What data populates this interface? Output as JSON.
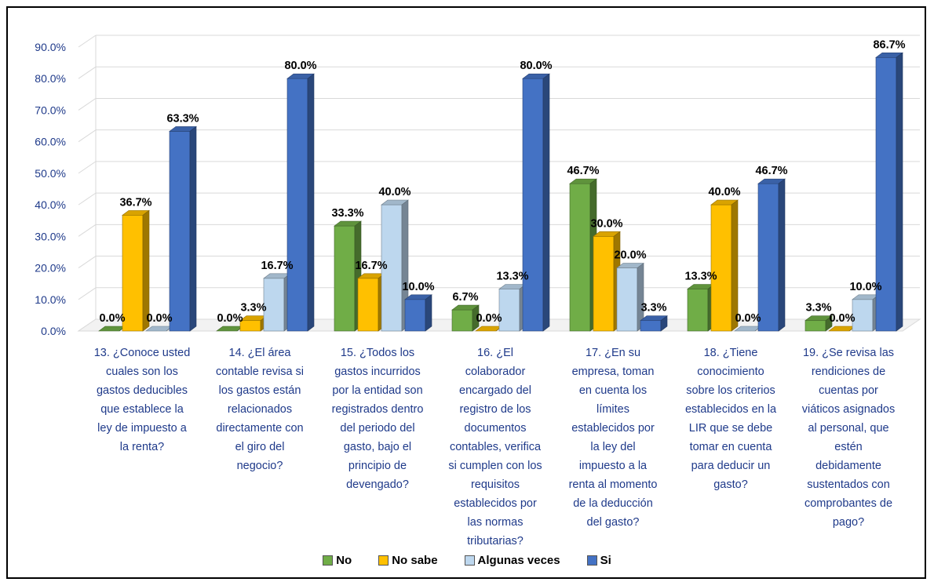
{
  "chart_data": {
    "type": "bar",
    "categories": [
      "13. ¿Conoce usted cuales son los gastos deducibles que establece la ley de impuesto a la renta?",
      "14. ¿El área contable revisa si los gastos están relacionados directamente con el giro del negocio?",
      "15. ¿Todos los gastos incurridos por la entidad son registrados dentro del periodo del gasto, bajo el principio de devengado?",
      "16. ¿El colaborador encargado del registro de los documentos contables, verifica si cumplen con los requisitos establecidos por las normas tributarias?",
      "17. ¿En su empresa, toman en cuenta los límites establecidos por la ley del impuesto a la renta al momento de la deducción del gasto?",
      "18. ¿Tiene conocimiento sobre los criterios establecidos en la LIR que se debe tomar en cuenta para deducir un gasto?",
      "19. ¿Se revisa las rendiciones de cuentas por viáticos asignados al personal, que estén debidamente sustentados con comprobantes de pago?"
    ],
    "category_lines": [
      [
        "13. ¿Conoce usted",
        "cuales son los",
        "gastos deducibles",
        "que establece la",
        "ley de impuesto a",
        "la renta?"
      ],
      [
        "14. ¿El área",
        "contable revisa si",
        "los gastos están",
        "relacionados",
        "directamente con",
        "el giro del",
        "negocio?"
      ],
      [
        "15. ¿Todos los",
        "gastos incurridos",
        "por la entidad son",
        "registrados dentro",
        "del periodo del",
        "gasto, bajo el",
        "principio de",
        "devengado?"
      ],
      [
        "16. ¿El",
        "colaborador",
        "encargado del",
        "registro de los",
        "documentos",
        "contables, verifica",
        "si cumplen con los",
        "requisitos",
        "establecidos por",
        "las normas",
        "tributarias?"
      ],
      [
        "17. ¿En su",
        "empresa, toman",
        "en cuenta los",
        "límites",
        "establecidos por",
        "la ley del",
        "impuesto a la",
        "renta al momento",
        "de la deducción",
        "del gasto?"
      ],
      [
        "18. ¿Tiene",
        "conocimiento",
        "sobre los criterios",
        "establecidos en la",
        "LIR que se debe",
        "tomar en cuenta",
        "para deducir un",
        "gasto?"
      ],
      [
        "19. ¿Se revisa las",
        "rendiciones de",
        "cuentas por",
        "viáticos asignados",
        "al personal, que",
        "estén",
        "debidamente",
        "sustentados con",
        "comprobantes de",
        "pago?"
      ]
    ],
    "series": [
      {
        "name": "No",
        "color": "#70ad47",
        "values": [
          0.0,
          0.0,
          33.3,
          6.7,
          46.7,
          13.3,
          3.3
        ]
      },
      {
        "name": "No sabe",
        "color": "#ffc000",
        "values": [
          36.7,
          3.3,
          16.7,
          0.0,
          30.0,
          40.0,
          0.0
        ]
      },
      {
        "name": "Algunas veces",
        "color": "#bdd7ee",
        "values": [
          0.0,
          16.7,
          40.0,
          13.3,
          20.0,
          0.0,
          10.0
        ]
      },
      {
        "name": "Si",
        "color": "#4472c4",
        "values": [
          63.3,
          80.0,
          10.0,
          80.0,
          3.3,
          46.7,
          86.7
        ]
      }
    ],
    "y_ticks": [
      "0.0%",
      "10.0%",
      "20.0%",
      "30.0%",
      "40.0%",
      "50.0%",
      "60.0%",
      "70.0%",
      "80.0%",
      "90.0%"
    ],
    "ylim": [
      0,
      90
    ],
    "grid": true,
    "legend_position": "bottom",
    "value_format": "percent, 1 decimal"
  }
}
